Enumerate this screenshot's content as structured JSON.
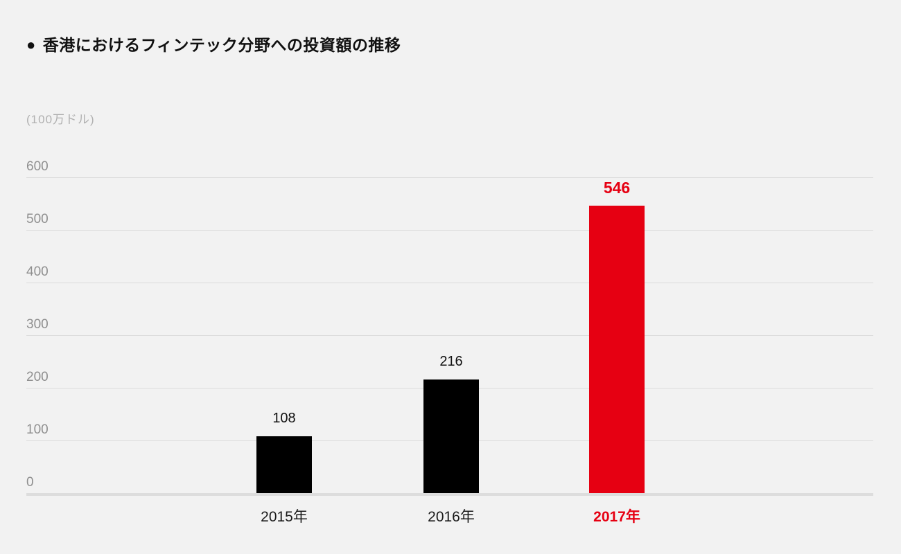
{
  "page": {
    "background": "#f2f2f2"
  },
  "header": {
    "bullet": "●",
    "title": "香港におけるフィンテック分野への投資額の推移"
  },
  "chart_data": {
    "type": "bar",
    "title": "香港におけるフィンテック分野への投資額の推移",
    "unit_label": "(100万ドル)",
    "categories": [
      "2015年",
      "2016年",
      "2017年"
    ],
    "values": [
      108,
      216,
      546
    ],
    "value_labels": [
      "108",
      "216",
      "546"
    ],
    "bar_colors": [
      "#000000",
      "#000000",
      "#e60012"
    ],
    "label_colors": [
      "#111111",
      "#111111",
      "#e60012"
    ],
    "emphasis_index": 2,
    "yticks": [
      0,
      100,
      200,
      300,
      400,
      500,
      600
    ],
    "ylim": [
      0,
      600
    ],
    "xlabel": "",
    "ylabel": "(100万ドル)",
    "grid": true,
    "legend": "none",
    "colors": {
      "accent_red": "#e60012",
      "bar_black": "#000000",
      "tick_gray": "#8f8f8f",
      "unit_gray": "#b0b0b0",
      "gridline": "#dcdcdc",
      "background": "#f2f2f2"
    }
  }
}
